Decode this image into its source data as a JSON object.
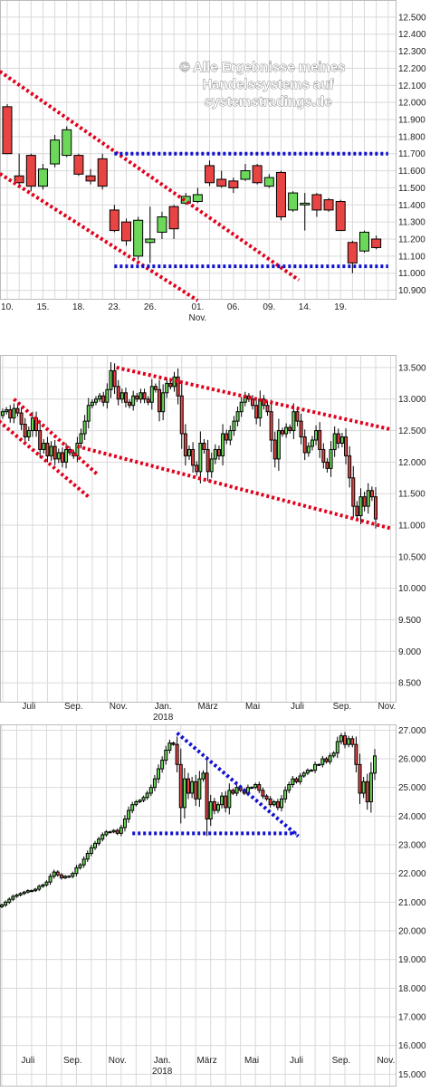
{
  "watermark": [
    "© Alle Ergebnisse meines",
    "Handelssystems auf",
    "systemstradings.de"
  ],
  "colors": {
    "up": "#6cd85a",
    "down": "#e84444",
    "trend_red": "#e0001b",
    "trend_blue": "#1010d0"
  },
  "chart_data": [
    {
      "type": "candlestick",
      "title": "",
      "ylim": [
        10850,
        12600
      ],
      "yticks": [
        "12.500",
        "12.400",
        "12.300",
        "12.200",
        "12.100",
        "12.000",
        "11.900",
        "11.800",
        "11.700",
        "11.600",
        "11.500",
        "11.400",
        "11.300",
        "11.200",
        "11.100",
        "11.000",
        "10.900"
      ],
      "ytick_values": [
        12500,
        12400,
        12300,
        12200,
        12100,
        12000,
        11900,
        11800,
        11700,
        11600,
        11500,
        11400,
        11300,
        11200,
        11100,
        11000,
        10900
      ],
      "xticks": [
        {
          "label": "10.",
          "sub": "",
          "i": 0
        },
        {
          "label": "15.",
          "sub": "",
          "i": 3
        },
        {
          "label": "18.",
          "sub": "",
          "i": 6
        },
        {
          "label": "23.",
          "sub": "",
          "i": 9
        },
        {
          "label": "26.",
          "sub": "",
          "i": 12
        },
        {
          "label": "01.",
          "sub": "Nov.",
          "i": 16
        },
        {
          "label": "06.",
          "sub": "",
          "i": 19
        },
        {
          "label": "09.",
          "sub": "",
          "i": 22
        },
        {
          "label": "14.",
          "sub": "",
          "i": 25
        },
        {
          "label": "19.",
          "sub": "",
          "i": 28
        }
      ],
      "candles": [
        {
          "o": 11975,
          "h": 11990,
          "l": 11700,
          "c": 11700
        },
        {
          "o": 11570,
          "h": 11700,
          "l": 11520,
          "c": 11530
        },
        {
          "o": 11690,
          "h": 11700,
          "l": 11480,
          "c": 11510
        },
        {
          "o": 11510,
          "h": 11640,
          "l": 11490,
          "c": 11610
        },
        {
          "o": 11640,
          "h": 11810,
          "l": 11620,
          "c": 11780
        },
        {
          "o": 11690,
          "h": 11860,
          "l": 11680,
          "c": 11840
        },
        {
          "o": 11690,
          "h": 11700,
          "l": 11570,
          "c": 11580
        },
        {
          "o": 11570,
          "h": 11610,
          "l": 11520,
          "c": 11540
        },
        {
          "o": 11670,
          "h": 11700,
          "l": 11490,
          "c": 11510
        },
        {
          "o": 11370,
          "h": 11400,
          "l": 11240,
          "c": 11250
        },
        {
          "o": 11300,
          "h": 11320,
          "l": 11160,
          "c": 11190
        },
        {
          "o": 11100,
          "h": 11330,
          "l": 11080,
          "c": 11310
        },
        {
          "o": 11180,
          "h": 11390,
          "l": 11060,
          "c": 11200
        },
        {
          "o": 11240,
          "h": 11360,
          "l": 11200,
          "c": 11330
        },
        {
          "o": 11390,
          "h": 11400,
          "l": 11200,
          "c": 11260
        },
        {
          "o": 11410,
          "h": 11470,
          "l": 11400,
          "c": 11450
        },
        {
          "o": 11420,
          "h": 11500,
          "l": 11410,
          "c": 11460
        },
        {
          "o": 11630,
          "h": 11660,
          "l": 11510,
          "c": 11530
        },
        {
          "o": 11550,
          "h": 11600,
          "l": 11500,
          "c": 11510
        },
        {
          "o": 11540,
          "h": 11560,
          "l": 11470,
          "c": 11500
        },
        {
          "o": 11550,
          "h": 11640,
          "l": 11540,
          "c": 11600
        },
        {
          "o": 11630,
          "h": 11640,
          "l": 11520,
          "c": 11530
        },
        {
          "o": 11510,
          "h": 11580,
          "l": 11500,
          "c": 11560
        },
        {
          "o": 11590,
          "h": 11600,
          "l": 11310,
          "c": 11330
        },
        {
          "o": 11370,
          "h": 11480,
          "l": 11360,
          "c": 11470
        },
        {
          "o": 11400,
          "h": 11470,
          "l": 11250,
          "c": 11410
        },
        {
          "o": 11460,
          "h": 11470,
          "l": 11330,
          "c": 11370
        },
        {
          "o": 11430,
          "h": 11440,
          "l": 11360,
          "c": 11370
        },
        {
          "o": 11420,
          "h": 11430,
          "l": 11250,
          "c": 11250
        },
        {
          "o": 11180,
          "h": 11190,
          "l": 11000,
          "c": 11060
        },
        {
          "o": 11130,
          "h": 11250,
          "l": 11120,
          "c": 11240
        },
        {
          "o": 11200,
          "h": 11220,
          "l": 11140,
          "c": 11150
        }
      ],
      "lines": [
        {
          "color": "red",
          "i1": -1,
          "v1": 12200,
          "i2": 24.5,
          "v2": 10960
        },
        {
          "color": "red",
          "i1": -1,
          "v1": 11600,
          "i2": 16,
          "v2": 10840
        },
        {
          "color": "blue",
          "i1": 9,
          "v1": 11700,
          "i2": 32,
          "v2": 11700
        },
        {
          "color": "blue",
          "i1": 9,
          "v1": 11040,
          "i2": 32,
          "v2": 11040
        }
      ]
    },
    {
      "type": "candlestick",
      "title": "",
      "ylim": [
        8200,
        13700
      ],
      "yticks": [
        "13.500",
        "13.000",
        "12.500",
        "12.000",
        "11.500",
        "11.000",
        "10.500",
        "10.000",
        "9.500",
        "9.000",
        "8.500"
      ],
      "ytick_values": [
        13500,
        13000,
        12500,
        12000,
        11500,
        11000,
        10500,
        10000,
        9500,
        9000,
        8500
      ],
      "xticks": [
        {
          "label": "Juli",
          "sub": "",
          "i": 7
        },
        {
          "label": "Sep.",
          "sub": "",
          "i": 19
        },
        {
          "label": "Nov.",
          "sub": "",
          "i": 31
        },
        {
          "label": "Jan.",
          "sub": "2018",
          "i": 43
        },
        {
          "label": "März",
          "sub": "",
          "i": 55
        },
        {
          "label": "Mai",
          "sub": "",
          "i": 67
        },
        {
          "label": "Juli",
          "sub": "",
          "i": 79
        },
        {
          "label": "Sep.",
          "sub": "",
          "i": 91
        },
        {
          "label": "Nov.",
          "sub": "",
          "i": 103
        }
      ],
      "closes": [
        12800,
        12830,
        12700,
        12850,
        12780,
        12600,
        12400,
        12500,
        12700,
        12500,
        12200,
        12300,
        12100,
        12250,
        12050,
        12150,
        12000,
        12200,
        12150,
        12100,
        12300,
        12450,
        12650,
        12900,
        12950,
        13000,
        13050,
        12950,
        13150,
        13450,
        13200,
        13000,
        13100,
        12950,
        12900,
        13050,
        13000,
        13100,
        13000,
        12950,
        13200,
        13150,
        12800,
        13100,
        13250,
        13200,
        13350,
        13050,
        12450,
        12100,
        12200,
        11950,
        11850,
        12300,
        12200,
        11850,
        12050,
        12200,
        12100,
        12450,
        12350,
        12500,
        12650,
        12800,
        12950,
        13050,
        13000,
        12900,
        12700,
        13000,
        12900,
        12800,
        12350,
        12050,
        12500,
        12450,
        12550,
        12500,
        12800,
        12650,
        12400,
        12150,
        12250,
        12350,
        12500,
        12200,
        12000,
        11900,
        12200,
        12450,
        12300,
        12400,
        12100,
        11750,
        11300,
        11150,
        11450,
        11300,
        11550,
        11450,
        11100
      ],
      "lines": [
        {
          "color": "red",
          "i1": 3,
          "v1": 13000,
          "i2": 25.5,
          "v2": 11800
        },
        {
          "color": "red",
          "i1": -1,
          "v1": 12650,
          "i2": 23,
          "v2": 11450
        },
        {
          "color": "red",
          "i1": 30.5,
          "v1": 13500,
          "i2": 104,
          "v2": 12520
        },
        {
          "color": "red",
          "i1": 20,
          "v1": 12250,
          "i2": 104,
          "v2": 10950
        }
      ]
    },
    {
      "type": "candlestick",
      "title": "",
      "ylim": [
        14600,
        27200
      ],
      "yticks": [
        "27.000",
        "26.000",
        "25.000",
        "24.000",
        "23.000",
        "22.000",
        "21.000",
        "20.000",
        "19.000",
        "18.000",
        "17.000",
        "16.000",
        "15.000"
      ],
      "ytick_values": [
        27000,
        26000,
        25000,
        24000,
        23000,
        22000,
        21000,
        20000,
        19000,
        18000,
        17000,
        16000,
        15000
      ],
      "xticks": [
        {
          "label": "Juli",
          "sub": "",
          "i": 7
        },
        {
          "label": "Sep.",
          "sub": "",
          "i": 19
        },
        {
          "label": "Nov.",
          "sub": "",
          "i": 31
        },
        {
          "label": "Jan.",
          "sub": "2018",
          "i": 43
        },
        {
          "label": "März",
          "sub": "",
          "i": 55
        },
        {
          "label": "Mai",
          "sub": "",
          "i": 67
        },
        {
          "label": "Juli",
          "sub": "",
          "i": 79
        },
        {
          "label": "Sep.",
          "sub": "",
          "i": 91
        },
        {
          "label": "Nov.",
          "sub": "",
          "i": 103
        }
      ],
      "closes": [
        20900,
        21000,
        21100,
        21200,
        21250,
        21300,
        21350,
        21400,
        21400,
        21450,
        21550,
        21600,
        21700,
        21900,
        22050,
        21950,
        21850,
        21900,
        21900,
        22000,
        22200,
        22300,
        22500,
        22700,
        22900,
        23050,
        23200,
        23350,
        23450,
        23450,
        23500,
        23400,
        23600,
        23900,
        24200,
        24400,
        24500,
        24550,
        24650,
        24800,
        25000,
        25300,
        25650,
        25950,
        26300,
        26550,
        26500,
        25800,
        24300,
        25300,
        24800,
        25200,
        24600,
        25300,
        25500,
        23900,
        24500,
        24200,
        24400,
        24700,
        24300,
        24900,
        24800,
        25000,
        24900,
        24800,
        25000,
        25000,
        25100,
        24900,
        24700,
        24600,
        24400,
        24500,
        24300,
        24600,
        24900,
        25100,
        25300,
        25200,
        25400,
        25500,
        25600,
        25600,
        25800,
        25800,
        26000,
        25900,
        26100,
        26200,
        26600,
        26800,
        26500,
        26700,
        26500,
        25800,
        24800,
        25200,
        24500,
        25500,
        26100
      ]
    }
  ]
}
